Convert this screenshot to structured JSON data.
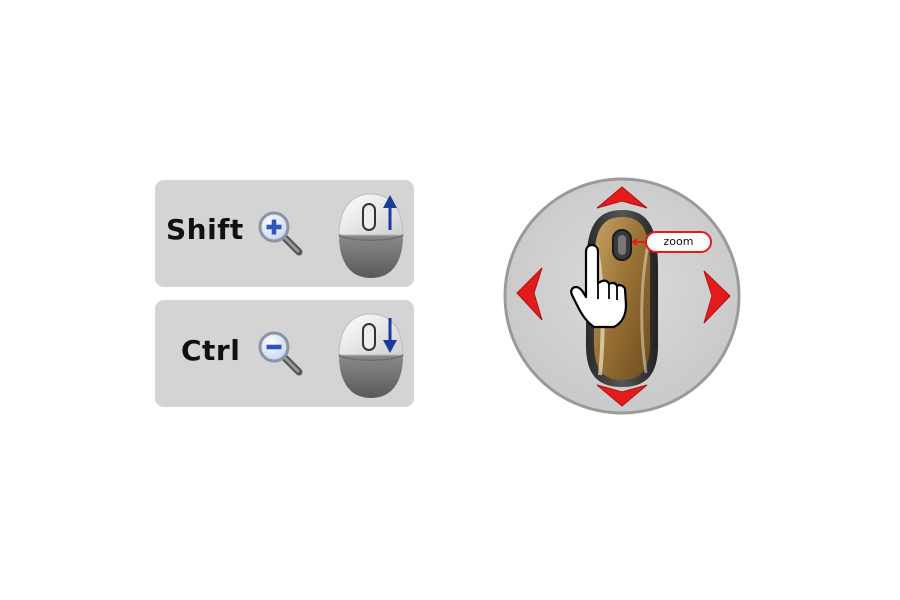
{
  "zoom_in_panel": {
    "key": "Shift",
    "action_icon": "zoom-in-icon",
    "wheel_icon": "scroll-up-icon"
  },
  "zoom_out_panel": {
    "key": "Ctrl",
    "action_icon": "zoom-out-icon",
    "wheel_icon": "scroll-down-icon"
  },
  "navigator": {
    "zoom_label": "zoom",
    "icons": [
      "pan-up-arrow-icon",
      "pan-down-arrow-icon",
      "pan-left-arrow-icon",
      "pan-right-arrow-icon",
      "mouse-icon",
      "hand-cursor-icon"
    ]
  },
  "colors": {
    "panel_bg": "#d4d4d4",
    "arrow_red": "#e31b1b",
    "wheel_arrow_blue": "#1a3a9c",
    "magnifier_blue": "#3355bb"
  }
}
